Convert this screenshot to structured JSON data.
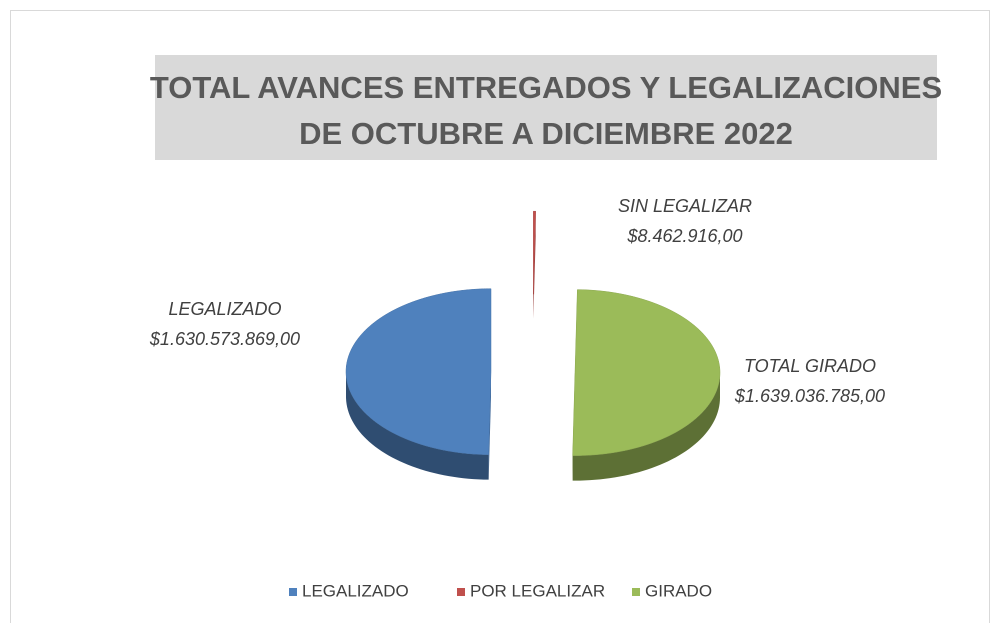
{
  "chart_data": {
    "type": "pie3d",
    "title": [
      "TOTAL AVANCES ENTREGADOS Y LEGALIZACIONES",
      "DE OCTUBRE A DICIEMBRE 2022"
    ],
    "categories": [
      "LEGALIZADO",
      "POR LEGALIZAR",
      "GIRADO"
    ],
    "values": [
      1630573869,
      8462916,
      1639036785
    ],
    "label_names": [
      "LEGALIZADO",
      "SIN LEGALIZAR",
      "TOTAL GIRADO"
    ],
    "value_labels": [
      "$1.630.573.869,00",
      "$8.462.916,00",
      "$1.639.036.785,00"
    ],
    "colors": [
      "#4f81bd",
      "#c0504d",
      "#9bbb59"
    ],
    "legend": "bottom"
  }
}
